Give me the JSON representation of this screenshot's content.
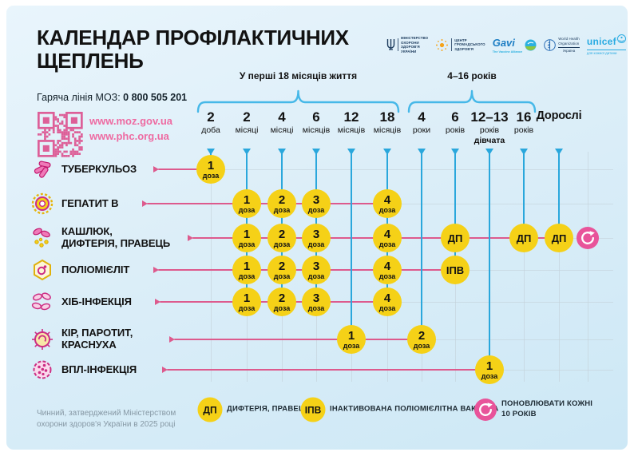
{
  "header": {
    "title": "КАЛЕНДАР ПРОФІЛАКТИЧНИХ ЩЕПЛЕНЬ",
    "hotline_label": "Гаряча лінія МОЗ:",
    "hotline_number": "0 800 505 201",
    "links": [
      "www.moz.gov.ua",
      "www.phc.org.ua"
    ]
  },
  "logos": [
    {
      "id": "moz",
      "lines": [
        "МІНІСТЕРСТВО",
        "ОХОРОНИ",
        "ЗДОРОВ'Я",
        "УКРАЇНИ"
      ]
    },
    {
      "id": "phc",
      "lines": [
        "ЦЕНТР",
        "ГРОМАДСЬКОГО",
        "ЗДОРОВ'Я"
      ]
    },
    {
      "id": "gavi",
      "lines": [
        "Gavi",
        "The Vaccine Alliance"
      ]
    },
    {
      "id": "who",
      "lines": [
        "World Health",
        "Organization",
        "Україна"
      ]
    },
    {
      "id": "unicef",
      "lines": [
        "unicef",
        "для кожної дитини"
      ]
    }
  ],
  "timeline": {
    "brackets": [
      {
        "label": "У перші 18 місяців життя",
        "from": 0,
        "to": 5
      },
      {
        "label": "4–16 років",
        "from": 6,
        "to": 9
      }
    ],
    "columns": [
      {
        "age": "2",
        "unit": "доба"
      },
      {
        "age": "2",
        "unit": "місяці"
      },
      {
        "age": "4",
        "unit": "місяці"
      },
      {
        "age": "6",
        "unit": "місяців"
      },
      {
        "age": "12",
        "unit": "місяців"
      },
      {
        "age": "18",
        "unit": "місяців"
      },
      {
        "age": "4",
        "unit": "роки"
      },
      {
        "age": "6",
        "unit": "років"
      },
      {
        "age": "12–13",
        "unit": "років",
        "note": "дівчата"
      },
      {
        "age": "16",
        "unit": "років"
      },
      {
        "age": "Дорослі",
        "unit": "",
        "adult": true
      }
    ]
  },
  "rows": [
    {
      "id": "tuberculosis",
      "lines": [
        "ТУБЕРКУЛЬОЗ"
      ],
      "doses": [
        {
          "col": 0,
          "num": "1",
          "sub": "доза"
        }
      ]
    },
    {
      "id": "hepatitis-b",
      "lines": [
        "ГЕПАТИТ В"
      ],
      "doses": [
        {
          "col": 1,
          "num": "1",
          "sub": "доза"
        },
        {
          "col": 2,
          "num": "2",
          "sub": "доза"
        },
        {
          "col": 3,
          "num": "3",
          "sub": "доза"
        },
        {
          "col": 5,
          "num": "4",
          "sub": "доза"
        }
      ]
    },
    {
      "id": "pertussis-diphtheria-tetanus",
      "lines": [
        "КАШЛЮК,",
        "ДИФТЕРІЯ, ПРАВЕЦЬ"
      ],
      "doses": [
        {
          "col": 1,
          "num": "1",
          "sub": "доза"
        },
        {
          "col": 2,
          "num": "2",
          "sub": "доза"
        },
        {
          "col": 3,
          "num": "3",
          "sub": "доза"
        },
        {
          "col": 5,
          "num": "4",
          "sub": "доза"
        },
        {
          "col": 7,
          "code": "ДП"
        },
        {
          "col": 9,
          "code": "ДП"
        },
        {
          "col": 10,
          "code": "ДП"
        }
      ],
      "refresh": true
    },
    {
      "id": "poliomyelitis",
      "lines": [
        "ПОЛІОМІЄЛІТ"
      ],
      "doses": [
        {
          "col": 1,
          "num": "1",
          "sub": "доза"
        },
        {
          "col": 2,
          "num": "2",
          "sub": "доза"
        },
        {
          "col": 3,
          "num": "3",
          "sub": "доза"
        },
        {
          "col": 5,
          "num": "4",
          "sub": "доза"
        },
        {
          "col": 7,
          "code": "ІПВ"
        }
      ]
    },
    {
      "id": "hib-infection",
      "lines": [
        "ХІБ-ІНФЕКЦІЯ"
      ],
      "doses": [
        {
          "col": 1,
          "num": "1",
          "sub": "доза"
        },
        {
          "col": 2,
          "num": "2",
          "sub": "доза"
        },
        {
          "col": 3,
          "num": "3",
          "sub": "доза"
        },
        {
          "col": 5,
          "num": "4",
          "sub": "доза"
        }
      ]
    },
    {
      "id": "measles-mumps-rubella",
      "lines": [
        "КІР, ПАРОТИТ,",
        "КРАСНУХА"
      ],
      "doses": [
        {
          "col": 4,
          "num": "1",
          "sub": "доза"
        },
        {
          "col": 6,
          "num": "2",
          "sub": "доза"
        }
      ]
    },
    {
      "id": "hpv-infection",
      "lines": [
        "ВПЛ-ІНФЕКЦІЯ"
      ],
      "doses": [
        {
          "col": 8,
          "num": "1",
          "sub": "доза"
        }
      ]
    }
  ],
  "legend": [
    {
      "badge": "ДП",
      "type": "yellow",
      "text": "ДИФТЕРІЯ, ПРАВЕЦЬ"
    },
    {
      "badge": "ІПВ",
      "type": "yellow",
      "text": "ІНАКТИВОВАНА ПОЛІОМІЄЛІТНА ВАКЦИНА"
    },
    {
      "badge": "refresh-icon",
      "type": "pink",
      "text": "ПОНОВЛЮВАТИ КОЖНІ 10 РОКІВ"
    }
  ],
  "footer": "Чинний, затверджений Міністерством охорони здоров'я України в 2025 році",
  "colors": {
    "background": "#dceef8",
    "line_pink": "#dd5a8d",
    "line_blue": "#2aa7dc",
    "dose_yellow": "#f5d117",
    "refresh_pink": "#e8549a",
    "link_pink": "#ee6ba2",
    "grid_gray": "#c3d0d8",
    "text": "#121212"
  }
}
